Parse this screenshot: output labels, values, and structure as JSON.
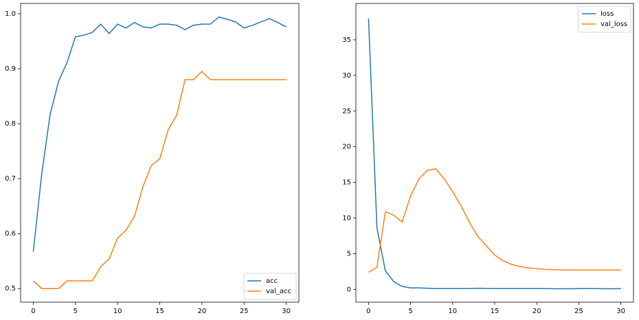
{
  "chart_data": [
    {
      "type": "line",
      "x": [
        0,
        1,
        2,
        3,
        4,
        5,
        6,
        7,
        8,
        9,
        10,
        11,
        12,
        13,
        14,
        15,
        16,
        17,
        18,
        19,
        20,
        21,
        22,
        23,
        24,
        25,
        26,
        27,
        28,
        29,
        30
      ],
      "series": [
        {
          "name": "acc",
          "color": "#1f77b4",
          "values": [
            0.567,
            0.708,
            0.817,
            0.877,
            0.911,
            0.958,
            0.961,
            0.966,
            0.981,
            0.964,
            0.981,
            0.974,
            0.984,
            0.976,
            0.974,
            0.981,
            0.981,
            0.979,
            0.971,
            0.979,
            0.981,
            0.981,
            0.994,
            0.99,
            0.985,
            0.974,
            0.979,
            0.985,
            0.991,
            0.984,
            0.976
          ]
        },
        {
          "name": "val_acc",
          "color": "#ff7f0e",
          "values": [
            0.514,
            0.5,
            0.5,
            0.5,
            0.514,
            0.514,
            0.514,
            0.514,
            0.54,
            0.554,
            0.592,
            0.606,
            0.631,
            0.685,
            0.724,
            0.736,
            0.789,
            0.815,
            0.88,
            0.88,
            0.895,
            0.88,
            0.88,
            0.88,
            0.88,
            0.88,
            0.88,
            0.88,
            0.88,
            0.88,
            0.88
          ]
        }
      ],
      "xlim": [
        -1.5,
        31.5
      ],
      "xticks": [
        0,
        5,
        10,
        15,
        20,
        25,
        30
      ],
      "ylim": [
        0.4753,
        1.0187
      ],
      "yticks": [
        0.5,
        0.6,
        0.7,
        0.8,
        0.9,
        {
          "value": 1.0,
          "label": "1.0"
        }
      ],
      "legend": "lower right"
    },
    {
      "type": "line",
      "x": [
        0,
        1,
        2,
        3,
        4,
        5,
        6,
        7,
        8,
        9,
        10,
        11,
        12,
        13,
        14,
        15,
        16,
        17,
        18,
        19,
        20,
        21,
        22,
        23,
        24,
        25,
        26,
        27,
        28,
        29,
        30
      ],
      "series": [
        {
          "name": "loss",
          "color": "#1f77b4",
          "values": [
            38.0,
            8.6,
            2.6,
            1.06,
            0.4,
            0.2,
            0.2,
            0.15,
            0.1,
            0.1,
            0.1,
            0.1,
            0.1,
            0.15,
            0.12,
            0.1,
            0.1,
            0.1,
            0.1,
            0.1,
            0.1,
            0.1,
            0.08,
            0.08,
            0.08,
            0.1,
            0.1,
            0.1,
            0.08,
            0.08,
            0.1
          ]
        },
        {
          "name": "val_loss",
          "color": "#ff7f0e",
          "values": [
            2.4,
            3.1,
            10.9,
            10.4,
            9.45,
            13.1,
            15.5,
            16.7,
            16.9,
            15.5,
            13.7,
            11.7,
            9.4,
            7.4,
            6.1,
            4.8,
            4.0,
            3.5,
            3.2,
            3.0,
            2.9,
            2.8,
            2.75,
            2.72,
            2.7,
            2.7,
            2.7,
            2.7,
            2.7,
            2.7,
            2.7
          ]
        }
      ],
      "xlim": [
        -1.5,
        31.5
      ],
      "xticks": [
        0,
        5,
        10,
        15,
        20,
        25,
        30
      ],
      "ylim": [
        -1.8,
        40.1
      ],
      "yticks": [
        0,
        5,
        10,
        15,
        20,
        25,
        30,
        35
      ],
      "legend": "upper right"
    }
  ]
}
